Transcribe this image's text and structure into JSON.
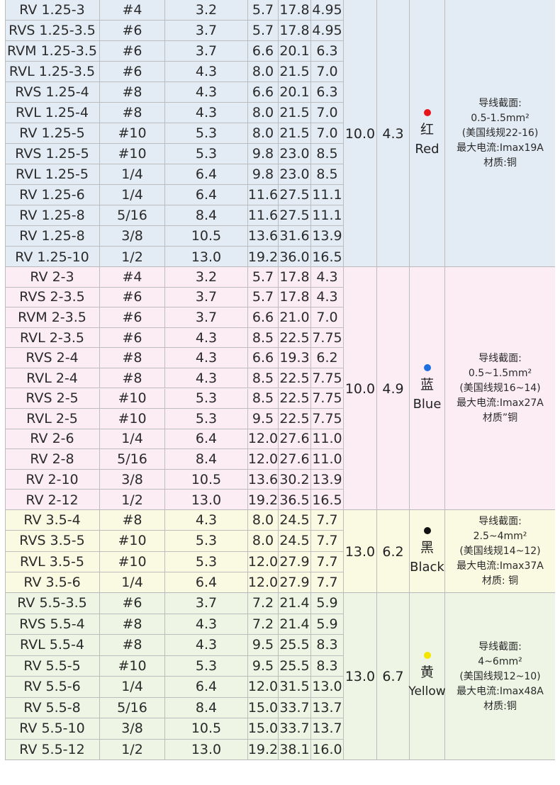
{
  "groups": [
    {
      "bg": "#e3ecf5",
      "rowBg": "#e3ecf5",
      "col_size_a": "10.0",
      "col_size_b": "4.3",
      "color_hex": "#e8141c",
      "color_cn": "红",
      "color_en": "Red",
      "spec_lines": [
        "导线截面:",
        "0.5-1.5mm²",
        "(美国线规22-16)",
        "最大电流:Imax19A",
        "材质:铜"
      ],
      "rows": [
        [
          "RV 1.25-3",
          "#4",
          "3.2",
          "5.7",
          "17.8",
          "4.95"
        ],
        [
          "RVS 1.25-3.5",
          "#6",
          "3.7",
          "5.7",
          "17.8",
          "4.95"
        ],
        [
          "RVM 1.25-3.5",
          "#6",
          "3.7",
          "6.6",
          "20.1",
          "6.3"
        ],
        [
          "RVL 1.25-3.5",
          "#6",
          "4.3",
          "8.0",
          "21.5",
          "7.0"
        ],
        [
          "RVS 1.25-4",
          "#8",
          "4.3",
          "6.6",
          "20.1",
          "6.3"
        ],
        [
          "RVL 1.25-4",
          "#8",
          "4.3",
          "8.0",
          "21.5",
          "7.0"
        ],
        [
          "RV 1.25-5",
          "#10",
          "5.3",
          "8.0",
          "21.5",
          "7.0"
        ],
        [
          "RVS 1.25-5",
          "#10",
          "5.3",
          "9.8",
          "23.0",
          "8.5"
        ],
        [
          "RVL 1.25-5",
          "1/4",
          "6.4",
          "9.8",
          "23.0",
          "8.5"
        ],
        [
          "RV 1.25-6",
          "1/4",
          "6.4",
          "11.6",
          "27.5",
          "11.1"
        ],
        [
          "RV 1.25-8",
          "5/16",
          "8.4",
          "11.6",
          "27.5",
          "11.1"
        ],
        [
          "RV 1.25-8",
          "3/8",
          "10.5",
          "13.6",
          "31.6",
          "13.9"
        ],
        [
          "RV 1.25-10",
          "1/2",
          "13.0",
          "19.2",
          "36.0",
          "16.5"
        ]
      ]
    },
    {
      "bg": "#fcedf4",
      "rowBg": "#fcedf4",
      "col_size_a": "10.0",
      "col_size_b": "4.9",
      "color_hex": "#1e6fe0",
      "color_cn": "蓝",
      "color_en": "Blue",
      "spec_lines": [
        "导线截面:",
        "0.5~1.5mm²",
        "(美国线规16~14)",
        "最大电流:Imax27A",
        "材质”铜"
      ],
      "rows": [
        [
          "RV 2-3",
          "#4",
          "3.2",
          "5.7",
          "17.8",
          "4.3"
        ],
        [
          "RVS 2-3.5",
          "#6",
          "3.7",
          "5.7",
          "17.8",
          "4.3"
        ],
        [
          "RVM 2-3.5",
          "#6",
          "3.7",
          "6.6",
          "21.0",
          "7.0"
        ],
        [
          "RVL 2-3.5",
          "#6",
          "4.3",
          "8.5",
          "22.5",
          "7.75"
        ],
        [
          "RVS 2-4",
          "#8",
          "4.3",
          "6.6",
          "19.3",
          "6.2"
        ],
        [
          "RVL 2-4",
          "#8",
          "4.3",
          "8.5",
          "22.5",
          "7.75"
        ],
        [
          "RVS 2-5",
          "#10",
          "5.3",
          "8.5",
          "22.5",
          "7.75"
        ],
        [
          "RVL 2-5",
          "#10",
          "5.3",
          "9.5",
          "22.5",
          "7.75"
        ],
        [
          "RV 2-6",
          "1/4",
          "6.4",
          "12.0",
          "27.6",
          "11.0"
        ],
        [
          "RV 2-8",
          "5/16",
          "8.4",
          "12.0",
          "27.6",
          "11.0"
        ],
        [
          "RV 2-10",
          "3/8",
          "10.5",
          "13.6",
          "30.2",
          "13.9"
        ],
        [
          "RV 2-12",
          "1/2",
          "13.0",
          "19.2",
          "36.5",
          "16.5"
        ]
      ]
    },
    {
      "bg": "#fafae3",
      "rowBg": "#fafae3",
      "col_size_a": "13.0",
      "col_size_b": "6.2",
      "color_hex": "#111111",
      "color_cn": "黑",
      "color_en": "Black",
      "spec_lines": [
        "导线截面:",
        "2.5~4mm²",
        "(美国线规14~12)",
        "最大电流:Imax37A",
        "材质: 铜"
      ],
      "rows": [
        [
          "RV 3.5-4",
          "#8",
          "4.3",
          "8.0",
          "24.5",
          "7.7"
        ],
        [
          "RVS 3.5-5",
          "#10",
          "5.3",
          "8.0",
          "24.5",
          "7.7"
        ],
        [
          "RVL 3.5-5",
          "#10",
          "5.3",
          "12.0",
          "27.9",
          "7.7"
        ],
        [
          "RV 3.5-6",
          "1/4",
          "6.4",
          "12.0",
          "27.9",
          "7.7"
        ]
      ]
    },
    {
      "bg": "#eff5e5",
      "rowBg": "#eff5e5",
      "col_size_a": "13.0",
      "col_size_b": "6.7",
      "color_hex": "#f5e600",
      "color_cn": "黄",
      "color_en": "Yellow",
      "spec_lines": [
        "导线截面:",
        "4~6mm²",
        "(美国线规12~10)",
        "最大电流:Imax48A",
        "材质:铜"
      ],
      "rows": [
        [
          "RV 5.5-3.5",
          "#6",
          "3.7",
          "7.2",
          "21.4",
          "5.9"
        ],
        [
          "RVS 5.5-4",
          "#8",
          "4.3",
          "7.2",
          "21.4",
          "5.9"
        ],
        [
          "RVL 5.5-4",
          "#8",
          "4.3",
          "9.5",
          "25.5",
          "8.3"
        ],
        [
          "RV 5.5-5",
          "#10",
          "5.3",
          "9.5",
          "25.5",
          "8.3"
        ],
        [
          "RV 5.5-6",
          "1/4",
          "6.4",
          "12.0",
          "31.5",
          "13.0"
        ],
        [
          "RV 5.5-8",
          "5/16",
          "8.4",
          "15.0",
          "33.7",
          "13.7"
        ],
        [
          "RV 5.5-10",
          "3/8",
          "10.5",
          "15.0",
          "33.7",
          "13.7"
        ],
        [
          "RV 5.5-12",
          "1/2",
          "13.0",
          "19.2",
          "38.1",
          "16.0"
        ]
      ]
    }
  ]
}
